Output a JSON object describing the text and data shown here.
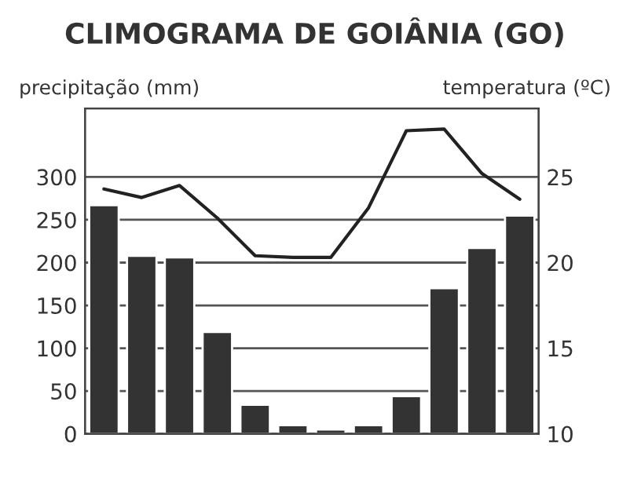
{
  "chart_data": {
    "type": "bar",
    "title": "CLIMOGRAMA DE GOIÂNIA (GO)",
    "ylabel": "precipitação (mm)",
    "y2label": "temperatura (ºC)",
    "categories": [
      null,
      null,
      null,
      null,
      null,
      null,
      null,
      null,
      null,
      null,
      null,
      null
    ],
    "ylim": [
      0,
      380
    ],
    "yticks": [
      0,
      50,
      100,
      150,
      200,
      250,
      300
    ],
    "y2lim": [
      10,
      29
    ],
    "y2ticks": [
      10,
      15,
      20,
      25
    ],
    "grid": "y",
    "series": [
      {
        "color": "#333333",
        "values": [
          267,
          208,
          206,
          119,
          34,
          10,
          5,
          10,
          44,
          170,
          217,
          255
        ]
      },
      {
        "type": "line",
        "axis": "y2",
        "color": "#222222",
        "values": [
          24.3,
          23.8,
          24.5,
          22.6,
          20.4,
          20.3,
          20.3,
          23.2,
          27.7,
          27.8,
          25.2,
          23.7
        ]
      }
    ]
  }
}
